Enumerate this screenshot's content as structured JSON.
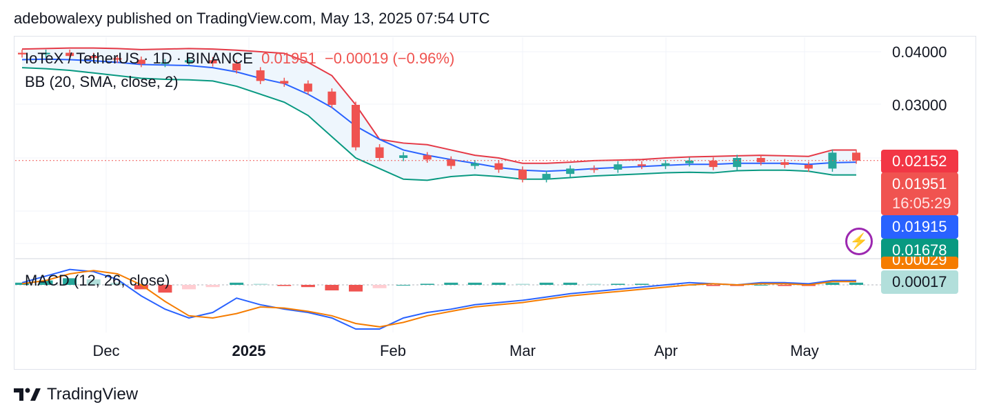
{
  "header": {
    "text": "adebowalexy published on TradingView.com, May 13, 2025 07:54 UTC"
  },
  "legend": {
    "symbol": "IoTeX / TetherUS · 1D · BINANCE",
    "price": "0.01951",
    "change": "−0.00019 (−0.96%)",
    "bb": "BB (20, SMA, close, 2)",
    "macd": "MACD (12, 26, close)"
  },
  "price_axis": {
    "ticks": [
      "0.04000",
      "0.03000"
    ]
  },
  "badges": {
    "bb_upper": "0.02152",
    "last_price": "0.01951",
    "countdown": "16:05:29",
    "bb_basis": "0.01915",
    "bb_lower": "0.01678",
    "macd_signal_hidden": "0.00029",
    "macd_hist": "0.00017"
  },
  "time_axis": {
    "labels": [
      "Dec",
      "2025",
      "Feb",
      "Mar",
      "Apr",
      "May"
    ]
  },
  "footer": {
    "brand": "TradingView"
  },
  "icons": {
    "alert": "lightning-icon",
    "logo": "tradingview-logo-icon"
  },
  "colors": {
    "up": "#26a69a",
    "down": "#ef5350",
    "bb_upper": "#e53946",
    "bb_basis": "#2962ff",
    "bb_lower": "#089981",
    "bb_fill": "#eef6fd",
    "macd_line": "#2962ff",
    "signal_line": "#f57c00",
    "last_badge": "#f05350"
  },
  "chart_data": {
    "type": "candlestick",
    "title": "IoTeX / TetherUS · 1D · BINANCE",
    "y_ticks": [
      0.04,
      0.03
    ],
    "x_labels": [
      "Dec",
      "2025",
      "Feb",
      "Mar",
      "Apr",
      "May"
    ],
    "series": [
      {
        "name": "close",
        "x": [
          "Nov 26",
          "Dec 1",
          "Dec 6",
          "Dec 11",
          "Dec 16",
          "Dec 21",
          "Dec 26",
          "Dec 31",
          "Jan 5",
          "Jan 10",
          "Jan 15",
          "Jan 20",
          "Jan 25",
          "Jan 30",
          "Feb 3",
          "Feb 8",
          "Feb 13",
          "Feb 18",
          "Feb 23",
          "Feb 27",
          "Mar 3",
          "Mar 8",
          "Mar 12",
          "Mar 17",
          "Mar 22",
          "Mar 27",
          "Apr 1",
          "Apr 6",
          "Apr 11",
          "Apr 16",
          "Apr 21",
          "Apr 26",
          "May 1",
          "May 6",
          "May 10",
          "May 13"
        ],
        "values": [
          0.0395,
          0.0398,
          0.0392,
          0.0388,
          0.0385,
          0.0377,
          0.038,
          0.0384,
          0.0378,
          0.0365,
          0.0345,
          0.034,
          0.0325,
          0.03,
          0.022,
          0.02,
          0.0205,
          0.0197,
          0.0185,
          0.019,
          0.0178,
          0.016,
          0.017,
          0.018,
          0.0178,
          0.0188,
          0.0185,
          0.019,
          0.0195,
          0.0183,
          0.02,
          0.0192,
          0.0187,
          0.018,
          0.021,
          0.0195
        ]
      },
      {
        "name": "BB upper",
        "values": [
          0.0405,
          0.0406,
          0.0407,
          0.0407,
          0.0406,
          0.0404,
          0.0405,
          0.0406,
          0.0405,
          0.0403,
          0.04,
          0.0397,
          0.038,
          0.0355,
          0.03,
          0.0235,
          0.0228,
          0.0225,
          0.0215,
          0.0205,
          0.02,
          0.019,
          0.019,
          0.0192,
          0.0195,
          0.0196,
          0.0197,
          0.02,
          0.0202,
          0.0203,
          0.0204,
          0.0205,
          0.0204,
          0.0203,
          0.0215,
          0.0215
        ]
      },
      {
        "name": "BB basis",
        "values": [
          0.0385,
          0.0386,
          0.0385,
          0.0383,
          0.038,
          0.0376,
          0.0375,
          0.0374,
          0.037,
          0.0362,
          0.035,
          0.034,
          0.032,
          0.0295,
          0.026,
          0.0235,
          0.0215,
          0.0205,
          0.0197,
          0.019,
          0.0182,
          0.0177,
          0.0175,
          0.0177,
          0.018,
          0.0182,
          0.0184,
          0.0186,
          0.0188,
          0.0188,
          0.019,
          0.019,
          0.019,
          0.0188,
          0.0191,
          0.0192
        ]
      },
      {
        "name": "BB lower",
        "values": [
          0.037,
          0.0368,
          0.0365,
          0.036,
          0.0355,
          0.035,
          0.0348,
          0.0347,
          0.0345,
          0.0335,
          0.032,
          0.0305,
          0.028,
          0.024,
          0.02,
          0.018,
          0.016,
          0.0158,
          0.0165,
          0.0168,
          0.0165,
          0.016,
          0.016,
          0.0163,
          0.0166,
          0.0168,
          0.017,
          0.0172,
          0.0173,
          0.0172,
          0.0176,
          0.0177,
          0.0177,
          0.0175,
          0.0168,
          0.0168
        ]
      }
    ],
    "last_price": 0.01951,
    "bb_upper_last": 0.02152,
    "bb_basis_last": 0.01915,
    "bb_lower_last": 0.01678,
    "macd": {
      "hist_last": 0.00017,
      "signal_last": 0.00029,
      "hist": [
        0.0002,
        0.0004,
        0.0006,
        0.0005,
        0.0002,
        -0.0004,
        -0.0007,
        -0.0004,
        -0.0002,
        0.0002,
        0.0001,
        -0.0001,
        -0.0002,
        -0.0005,
        -0.0006,
        -0.0003,
        0.0,
        0.0001,
        0.0002,
        0.0002,
        0.0002,
        0.0001,
        0.0002,
        0.0002,
        0.0001,
        0.0001,
        0.0001,
        0.0,
        0.0,
        -0.0001,
        -0.0001,
        0.0,
        -0.0001,
        -0.0001,
        0.0002,
        0.0002
      ],
      "line": [
        0.0002,
        0.0008,
        0.0014,
        0.0012,
        0.0005,
        -0.001,
        -0.0022,
        -0.003,
        -0.0025,
        -0.0012,
        -0.0018,
        -0.0022,
        -0.0025,
        -0.003,
        -0.004,
        -0.004,
        -0.003,
        -0.0025,
        -0.0022,
        -0.0018,
        -0.0016,
        -0.0014,
        -0.0011,
        -0.0008,
        -0.0006,
        -0.0004,
        -0.0002,
        0.0,
        0.0002,
        0.0001,
        0.0,
        0.0002,
        0.0002,
        0.0001,
        0.0004,
        0.0004
      ],
      "signal": [
        0.0001,
        0.0004,
        0.001,
        0.0013,
        0.001,
        0.0,
        -0.0015,
        -0.0028,
        -0.003,
        -0.0026,
        -0.002,
        -0.0021,
        -0.0024,
        -0.0028,
        -0.0035,
        -0.0038,
        -0.0034,
        -0.0028,
        -0.0024,
        -0.002,
        -0.0018,
        -0.0016,
        -0.0013,
        -0.001,
        -0.0008,
        -0.0006,
        -0.0004,
        -0.0002,
        0.0,
        0.0001,
        0.0,
        0.0001,
        0.0001,
        0.0,
        0.0003,
        0.0003
      ]
    }
  }
}
